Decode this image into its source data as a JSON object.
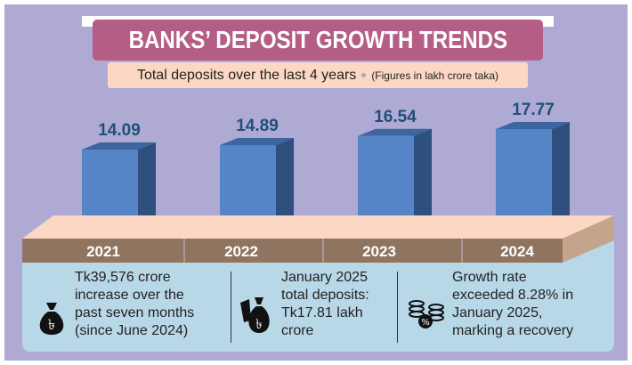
{
  "title": "BANKS’ DEPOSIT GROWTH TRENDS",
  "subtitle": "Total deposits over the last 4 years",
  "note": "(Figures in lakh crore taka)",
  "colors": {
    "background": "#aeaad4",
    "banner": "#b45e86",
    "subtitle_bg": "#fcd8c4",
    "bar_front": "#5585c6",
    "bar_side": "#2f4f7f",
    "platform_top": "#fcd8c4",
    "year_band": "#8f7560",
    "panel": "#b8d8e8"
  },
  "chart_data": {
    "type": "bar",
    "categories": [
      "2021",
      "2022",
      "2023",
      "2024"
    ],
    "values": [
      14.09,
      14.89,
      16.54,
      17.77
    ],
    "value_labels": [
      "14.09",
      "14.89",
      "16.54",
      "17.77"
    ],
    "title": "BANKS’ DEPOSIT GROWTH TRENDS",
    "subtitle": "Total deposits over the last 4 years",
    "grid": false
  },
  "facts": [
    {
      "icon": "money-bag-taka-icon",
      "lines": [
        "Tk39,576 crore",
        "increase over the",
        "past seven months",
        "(since June 2024)"
      ]
    },
    {
      "icon": "hand-money-bag-icon",
      "lines": [
        "January 2025",
        "total deposits:",
        "Tk17.81 lakh",
        "crore"
      ]
    },
    {
      "icon": "coins-percent-icon",
      "lines": [
        "Growth rate",
        "exceeded 8.28% in",
        "January 2025,",
        "marking a recovery"
      ]
    }
  ]
}
